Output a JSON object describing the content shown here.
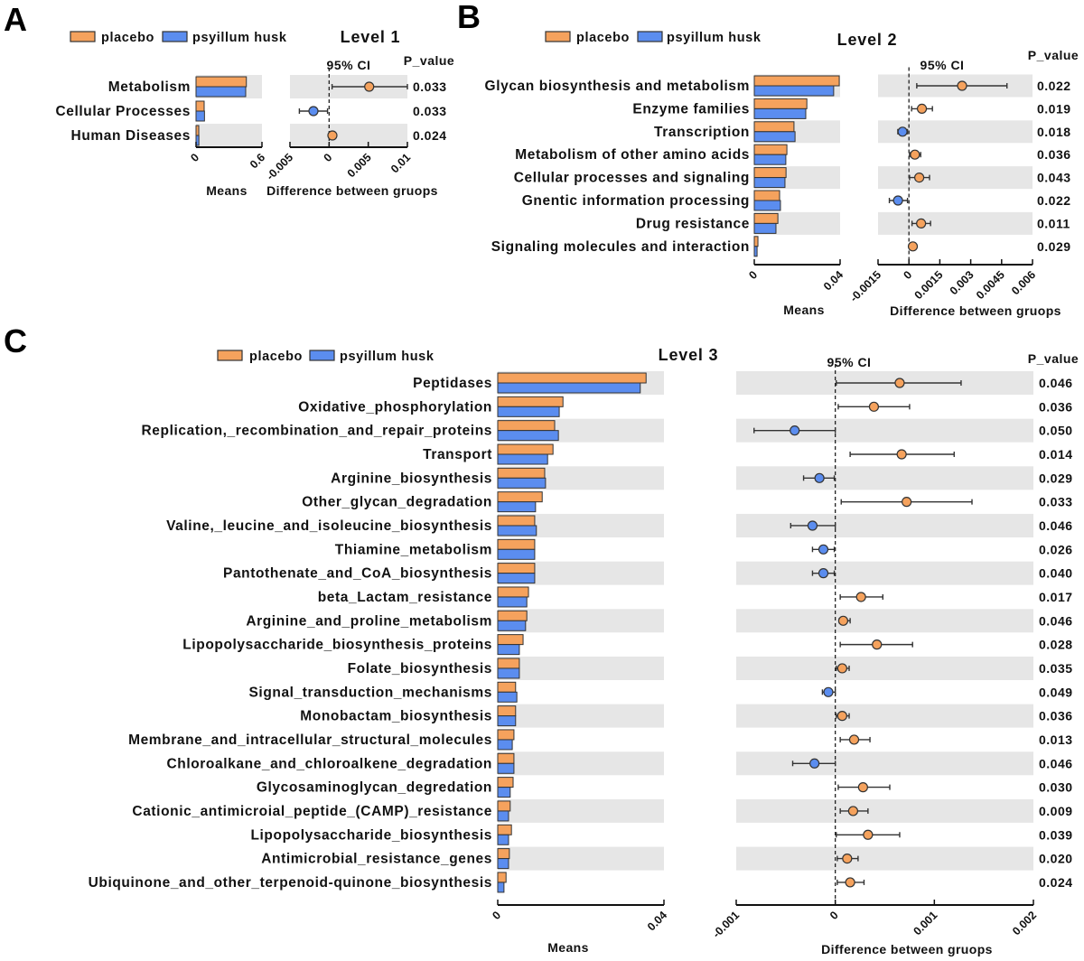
{
  "legend": {
    "placebo": "placebo",
    "psyllium": "psyillum husk"
  },
  "colors": {
    "placebo": "#F5A25D",
    "psyllium": "#5B8DEF",
    "band": "#E6E6E6",
    "outline": "#333333"
  },
  "chart_data": [
    {
      "panel": "A",
      "type": "bar+errorbar",
      "title": "Level 1",
      "ci_label": "95% CI",
      "p_label": "P_value",
      "categories": [
        "Metabolism",
        "Cellular Processes",
        "Human Diseases"
      ],
      "placebo_means": [
        0.458,
        0.074,
        0.025
      ],
      "psyllium_means": [
        0.452,
        0.077,
        0.026
      ],
      "diff": [
        0.00512,
        -0.002,
        0.00042
      ],
      "ci_low": [
        0.00038,
        -0.0038,
        0.0003
      ],
      "ci_high": [
        0.01,
        -0.0002,
        0.00054
      ],
      "p_values": [
        "0.033",
        "0.033",
        "0.024"
      ],
      "means_axis": {
        "label": "Means",
        "range": [
          0,
          0.6
        ],
        "ticks": [
          0,
          0.6
        ],
        "tick_labels": [
          "0",
          "0.6"
        ]
      },
      "diff_axis": {
        "label": "Difference between gruops",
        "range": [
          -0.005,
          0.01
        ],
        "ticks": [
          -0.005,
          0,
          0.005,
          0.01
        ],
        "tick_labels": [
          "-0.005",
          "0",
          "0.005",
          "0.01"
        ]
      }
    },
    {
      "panel": "B",
      "type": "bar+errorbar",
      "title": "Level 2",
      "ci_label": "95% CI",
      "p_label": "P_value",
      "categories": [
        "Glycan biosynthesis and metabolism",
        "Enzyme families",
        "Transcription",
        "Metabolism of other amino acids",
        "Cellular processes and signaling",
        "Gnentic information processing",
        "Drug resistance",
        "Signaling molecules and interaction"
      ],
      "placebo_means": [
        0.0396,
        0.0245,
        0.0185,
        0.0152,
        0.0148,
        0.0118,
        0.011,
        0.0017
      ],
      "psyllium_means": [
        0.037,
        0.024,
        0.019,
        0.0147,
        0.0143,
        0.0122,
        0.0101,
        0.0013
      ],
      "diff": [
        0.00258,
        0.00063,
        -0.00031,
        0.00029,
        0.0005,
        -0.00053,
        0.00059,
        0.00019
      ],
      "ci_low": [
        0.00038,
        0.00013,
        -0.00054,
        3e-05,
        3e-05,
        -0.00095,
        0.00015,
        0.00012
      ],
      "ci_high": [
        0.00476,
        0.00114,
        -7e-05,
        0.00057,
        0.001,
        -7e-05,
        0.00105,
        0.00026
      ],
      "p_values": [
        "0.022",
        "0.019",
        "0.018",
        "0.036",
        "0.043",
        "0.022",
        "0.011",
        "0.029"
      ],
      "means_axis": {
        "label": "Means",
        "range": [
          0,
          0.04
        ],
        "ticks": [
          0,
          0.04
        ],
        "tick_labels": [
          "0",
          "0.04"
        ]
      },
      "diff_axis": {
        "label": "Difference between gruops",
        "range": [
          -0.0015,
          0.006
        ],
        "ticks": [
          -0.0015,
          0,
          0.0015,
          0.003,
          0.0045,
          0.006
        ],
        "tick_labels": [
          "-0.0015",
          "0",
          "0.0015",
          "0.003",
          "0.0045",
          "0.006"
        ]
      }
    },
    {
      "panel": "C",
      "type": "bar+errorbar",
      "title": "Level 3",
      "ci_label": "95% CI",
      "p_label": "P_value",
      "categories": [
        "Peptidases",
        "Oxidative_phosphorylation",
        "Replication,_recombination_and_repair_proteins",
        "Transport",
        "Arginine_biosynthesis",
        "Other_glycan_degradation",
        "Valine,_leucine_and_isoleucine_biosynthesis",
        "Thiamine_metabolism",
        "Pantothenate_and_CoA_biosynthesis",
        "beta_Lactam_resistance",
        "Arginine_and_proline_metabolism",
        "Lipopolysaccharide_biosynthesis_proteins",
        "Folate_biosynthesis",
        "Signal_transduction_mechanisms",
        "Monobactam_biosynthesis",
        "Membrane_and_intracellular_structural_molecules",
        "Chloroalkane_and_chloroalkene_degradation",
        "Glycosaminoglycan_degredation",
        "Cationic_antimicroial_peptide_(CAMP)_resistance",
        "Lipopolysaccharide_biosynthesis",
        "Antimicrobial_resistance_genes",
        "Ubiquinone_and_other_terpenoid-quinone_biosynthesis"
      ],
      "placebo_means": [
        0.0357,
        0.0157,
        0.0137,
        0.0133,
        0.0113,
        0.0107,
        0.0089,
        0.0089,
        0.0089,
        0.0074,
        0.007,
        0.0061,
        0.0052,
        0.0043,
        0.0043,
        0.0039,
        0.0039,
        0.0037,
        0.003,
        0.0033,
        0.0028,
        0.002
      ],
      "psyllium_means": [
        0.0343,
        0.0148,
        0.0146,
        0.012,
        0.0115,
        0.0091,
        0.0093,
        0.0089,
        0.0089,
        0.007,
        0.0067,
        0.0052,
        0.0052,
        0.0046,
        0.0043,
        0.0035,
        0.0039,
        0.003,
        0.0026,
        0.0026,
        0.0026,
        0.0015
      ],
      "diff": [
        0.00065,
        0.00039,
        -0.00041,
        0.00067,
        -0.00016,
        0.00072,
        -0.00023,
        -0.00012,
        -0.00012,
        0.00026,
        8e-05,
        0.00042,
        7e-05,
        -7e-05,
        7e-05,
        0.00019,
        -0.00021,
        0.00028,
        0.00018,
        0.00033,
        0.00012,
        0.00015
      ],
      "ci_low": [
        1e-05,
        3e-05,
        -0.00082,
        0.00015,
        -0.00032,
        6e-05,
        -0.00045,
        -0.00023,
        -0.00023,
        5e-05,
        4e-05,
        5e-05,
        1e-05,
        -0.00013,
        1e-05,
        5e-05,
        -0.00043,
        3e-05,
        5e-05,
        1e-05,
        2e-05,
        2e-05
      ],
      "ci_high": [
        0.00127,
        0.00075,
        0.0,
        0.0012,
        -1e-05,
        0.00138,
        0.0,
        -1e-05,
        -1e-05,
        0.00048,
        0.00015,
        0.00078,
        0.00014,
        0.0,
        0.00014,
        0.00035,
        0.0,
        0.00055,
        0.00033,
        0.00065,
        0.00023,
        0.00029
      ],
      "p_values": [
        "0.046",
        "0.036",
        "0.050",
        "0.014",
        "0.029",
        "0.033",
        "0.046",
        "0.026",
        "0.040",
        "0.017",
        "0.046",
        "0.028",
        "0.035",
        "0.049",
        "0.036",
        "0.013",
        "0.046",
        "0.030",
        "0.009",
        "0.039",
        "0.020",
        "0.024"
      ],
      "means_axis": {
        "label": "Means",
        "range": [
          0,
          0.04
        ],
        "ticks": [
          0,
          0.04
        ],
        "tick_labels": [
          "0",
          "0.04"
        ]
      },
      "diff_axis": {
        "label": "Difference between gruops",
        "range": [
          -0.001,
          0.002
        ],
        "ticks": [
          -0.001,
          0,
          0.001,
          0.002
        ],
        "tick_labels": [
          "-0.001",
          "0",
          "0.001",
          "0.002"
        ]
      }
    }
  ]
}
